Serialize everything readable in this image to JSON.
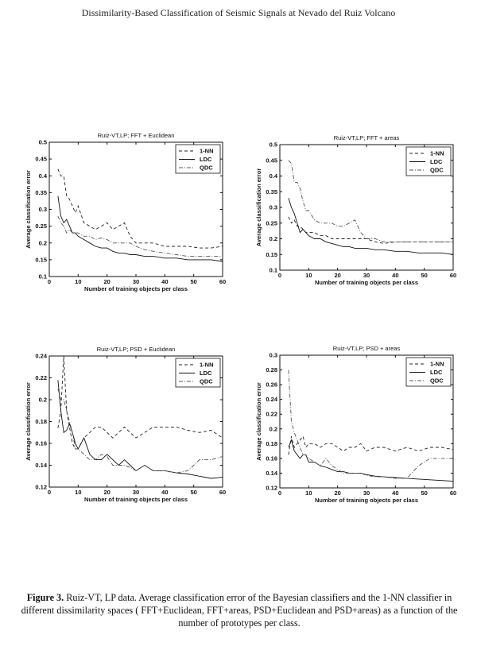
{
  "header": "Dissimilarity-Based Classification of Seismic Signals at Nevado del Ruiz Volcano",
  "caption": {
    "label": "Figure 3.",
    "text": " Ruiz-VT, LP data. Average classification error of the Bayesian classifiers and the 1-NN classifier in different dissimilarity spaces ( FFT+Euclidean, FFT+areas, PSD+Euclidean and PSD+areas) as a function of the number of prototypes per class."
  },
  "chart_data": [
    {
      "type": "line",
      "title": "Ruiz-VT,LP; FFT + Euclidean",
      "xlabel": "Number of training objects per class",
      "ylabel": "Average classification error",
      "xlim": [
        0,
        60
      ],
      "ylim": [
        0.1,
        0.5
      ],
      "xticks": [
        0,
        10,
        20,
        30,
        40,
        50,
        60
      ],
      "yticks": [
        0.1,
        0.15,
        0.2,
        0.25,
        0.3,
        0.35,
        0.4,
        0.45,
        0.5
      ],
      "ytick_labels": [
        "0.1",
        "0.15",
        "0.2",
        "0.25",
        "0.3",
        "0.35",
        "0.4",
        "0.45",
        "0.5"
      ],
      "legend": "top-right",
      "x": [
        3,
        4,
        5,
        6,
        7,
        8,
        9,
        10,
        12,
        14,
        16,
        18,
        20,
        22,
        24,
        26,
        28,
        30,
        33,
        36,
        40,
        44,
        48,
        52,
        56,
        60
      ],
      "series": [
        {
          "name": "1-NN",
          "style": "dashed",
          "values": [
            0.42,
            0.4,
            0.4,
            0.34,
            0.33,
            0.31,
            0.29,
            0.31,
            0.26,
            0.25,
            0.24,
            0.25,
            0.26,
            0.24,
            0.25,
            0.26,
            0.22,
            0.2,
            0.2,
            0.2,
            0.19,
            0.19,
            0.19,
            0.185,
            0.185,
            0.19
          ]
        },
        {
          "name": "LDC",
          "style": "solid",
          "values": [
            0.34,
            0.28,
            0.26,
            0.27,
            0.25,
            0.23,
            0.23,
            0.22,
            0.21,
            0.2,
            0.19,
            0.185,
            0.185,
            0.175,
            0.17,
            0.17,
            0.165,
            0.165,
            0.16,
            0.16,
            0.155,
            0.155,
            0.15,
            0.15,
            0.15,
            0.145
          ]
        },
        {
          "name": "QDC",
          "style": "dashdot",
          "values": [
            0.28,
            0.26,
            0.25,
            0.23,
            0.24,
            0.23,
            0.23,
            0.23,
            0.22,
            0.22,
            0.21,
            0.215,
            0.21,
            0.2,
            0.2,
            0.2,
            0.2,
            0.19,
            0.18,
            0.175,
            0.17,
            0.165,
            0.16,
            0.16,
            0.16,
            0.16
          ]
        }
      ]
    },
    {
      "type": "line",
      "title": "Ruiz-VT,LP; FFT + areas",
      "xlabel": "Number of training objects per class",
      "ylabel": "Average classification error",
      "xlim": [
        0,
        60
      ],
      "ylim": [
        0.1,
        0.5
      ],
      "xticks": [
        0,
        10,
        20,
        30,
        40,
        50,
        60
      ],
      "yticks": [
        0.1,
        0.15,
        0.2,
        0.25,
        0.3,
        0.35,
        0.4,
        0.45,
        0.5
      ],
      "ytick_labels": [
        "0.1",
        "0.15",
        "0.2",
        "0.25",
        "0.3",
        "0.35",
        "0.4",
        "0.45",
        "0.5"
      ],
      "legend": "top-right",
      "x": [
        3,
        4,
        5,
        6,
        7,
        8,
        9,
        10,
        12,
        14,
        16,
        18,
        20,
        22,
        24,
        26,
        28,
        30,
        33,
        36,
        40,
        44,
        48,
        52,
        56,
        60
      ],
      "series": [
        {
          "name": "1-NN",
          "style": "dashed",
          "values": [
            0.27,
            0.25,
            0.26,
            0.24,
            0.24,
            0.23,
            0.22,
            0.22,
            0.22,
            0.21,
            0.21,
            0.2,
            0.2,
            0.2,
            0.2,
            0.2,
            0.2,
            0.2,
            0.19,
            0.185,
            0.19,
            0.19,
            0.19,
            0.19,
            0.19,
            0.19
          ]
        },
        {
          "name": "LDC",
          "style": "solid",
          "values": [
            0.33,
            0.3,
            0.28,
            0.25,
            0.22,
            0.23,
            0.22,
            0.21,
            0.2,
            0.2,
            0.19,
            0.185,
            0.18,
            0.175,
            0.175,
            0.17,
            0.17,
            0.17,
            0.165,
            0.165,
            0.16,
            0.16,
            0.155,
            0.155,
            0.155,
            0.15
          ]
        },
        {
          "name": "QDC",
          "style": "dashdot",
          "values": [
            0.45,
            0.44,
            0.38,
            0.38,
            0.36,
            0.32,
            0.29,
            0.29,
            0.26,
            0.25,
            0.25,
            0.25,
            0.24,
            0.24,
            0.25,
            0.26,
            0.22,
            0.2,
            0.2,
            0.19,
            0.19,
            0.19,
            0.19,
            0.19,
            0.19,
            0.19
          ]
        }
      ]
    },
    {
      "type": "line",
      "title": "Ruiz-VT,LP; PSD + Euclidean",
      "xlabel": "Number of training objects per class",
      "ylabel": "Average classification error",
      "xlim": [
        0,
        60
      ],
      "ylim": [
        0.12,
        0.24
      ],
      "xticks": [
        0,
        10,
        20,
        30,
        40,
        50,
        60
      ],
      "yticks": [
        0.12,
        0.14,
        0.16,
        0.18,
        0.2,
        0.22,
        0.24
      ],
      "ytick_labels": [
        "0.12",
        "0.14",
        "0.16",
        "0.18",
        "0.2",
        "0.22",
        "0.24"
      ],
      "legend": "top-right",
      "x": [
        3,
        4,
        5,
        6,
        7,
        8,
        9,
        10,
        12,
        14,
        16,
        18,
        20,
        22,
        24,
        26,
        28,
        30,
        33,
        36,
        40,
        44,
        48,
        52,
        56,
        60
      ],
      "series": [
        {
          "name": "1-NN",
          "style": "dashed",
          "values": [
            0.174,
            0.19,
            0.24,
            0.19,
            0.175,
            0.16,
            0.155,
            0.155,
            0.165,
            0.17,
            0.175,
            0.175,
            0.17,
            0.165,
            0.17,
            0.175,
            0.17,
            0.165,
            0.17,
            0.175,
            0.175,
            0.175,
            0.172,
            0.17,
            0.172,
            0.165
          ]
        },
        {
          "name": "LDC",
          "style": "solid",
          "values": [
            0.218,
            0.19,
            0.17,
            0.172,
            0.178,
            0.17,
            0.16,
            0.155,
            0.165,
            0.15,
            0.145,
            0.145,
            0.15,
            0.145,
            0.14,
            0.145,
            0.14,
            0.135,
            0.14,
            0.135,
            0.135,
            0.133,
            0.132,
            0.13,
            0.128,
            0.129
          ]
        },
        {
          "name": "QDC",
          "style": "dashdot",
          "values": [
            0.21,
            0.2,
            0.2,
            0.19,
            0.18,
            0.17,
            0.155,
            0.155,
            0.15,
            0.145,
            0.145,
            0.15,
            0.148,
            0.14,
            0.14,
            0.14,
            0.138,
            0.135,
            0.14,
            0.135,
            0.135,
            0.133,
            0.135,
            0.145,
            0.145,
            0.148
          ]
        }
      ]
    },
    {
      "type": "line",
      "title": "Ruiz-VT,LP; PSD + areas",
      "xlabel": "Number of training objects per class",
      "ylabel": "Average classification error",
      "xlim": [
        0,
        60
      ],
      "ylim": [
        0.12,
        0.3
      ],
      "xticks": [
        0,
        10,
        20,
        30,
        40,
        50,
        60
      ],
      "yticks": [
        0.12,
        0.14,
        0.16,
        0.18,
        0.2,
        0.22,
        0.24,
        0.26,
        0.28,
        0.3
      ],
      "ytick_labels": [
        "0.12",
        "0.14",
        "0.16",
        "0.18",
        "0.2",
        "0.22",
        "0.24",
        "0.26",
        "0.28",
        "0.3"
      ],
      "legend": "top-right",
      "x": [
        3,
        4,
        5,
        6,
        7,
        8,
        9,
        10,
        12,
        14,
        16,
        18,
        20,
        22,
        24,
        26,
        28,
        30,
        33,
        36,
        40,
        44,
        48,
        52,
        56,
        60
      ],
      "series": [
        {
          "name": "1-NN",
          "style": "dashed",
          "values": [
            0.165,
            0.19,
            0.175,
            0.18,
            0.185,
            0.19,
            0.175,
            0.18,
            0.18,
            0.175,
            0.18,
            0.18,
            0.175,
            0.17,
            0.175,
            0.175,
            0.18,
            0.17,
            0.175,
            0.175,
            0.17,
            0.175,
            0.17,
            0.175,
            0.175,
            0.172
          ]
        },
        {
          "name": "LDC",
          "style": "solid",
          "values": [
            0.175,
            0.185,
            0.17,
            0.165,
            0.16,
            0.165,
            0.165,
            0.155,
            0.155,
            0.15,
            0.148,
            0.145,
            0.142,
            0.142,
            0.14,
            0.14,
            0.14,
            0.138,
            0.136,
            0.135,
            0.134,
            0.133,
            0.132,
            0.131,
            0.13,
            0.129
          ]
        },
        {
          "name": "QDC",
          "style": "dashdot",
          "values": [
            0.28,
            0.21,
            0.195,
            0.185,
            0.175,
            0.165,
            0.165,
            0.16,
            0.155,
            0.15,
            0.16,
            0.15,
            0.145,
            0.14,
            0.14,
            0.14,
            0.14,
            0.137,
            0.135,
            0.135,
            0.133,
            0.133,
            0.15,
            0.16,
            0.16,
            0.16
          ]
        }
      ]
    }
  ]
}
